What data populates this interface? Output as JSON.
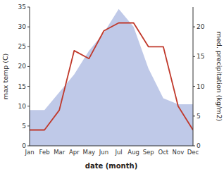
{
  "chart_data": {
    "type": "line",
    "xlabel": "date (month)",
    "ylabel": "max temp (C)",
    "y2label": "med. precipitation (kg/m2)",
    "categories": [
      "Jan",
      "Feb",
      "Mar",
      "Apr",
      "May",
      "Jun",
      "Jul",
      "Aug",
      "Sep",
      "Oct",
      "Nov",
      "Dec"
    ],
    "series": [
      {
        "type": "area",
        "axis": "y2",
        "color": "#bfc9e8",
        "values": [
          6,
          6,
          9,
          12,
          16,
          19,
          23,
          20,
          13,
          8,
          7,
          7
        ]
      },
      {
        "type": "line",
        "color": "#c0392b",
        "values": [
          4,
          4,
          9,
          24,
          22,
          29,
          31,
          31,
          25,
          25,
          10,
          4
        ]
      }
    ],
    "ylim": [
      0,
      35
    ],
    "yticks": [
      0,
      5,
      10,
      15,
      20,
      25,
      30,
      35
    ],
    "y2lim": [
      0,
      23.33
    ],
    "y2ticks": [
      0,
      5,
      10,
      15,
      20
    ],
    "grid": false
  }
}
